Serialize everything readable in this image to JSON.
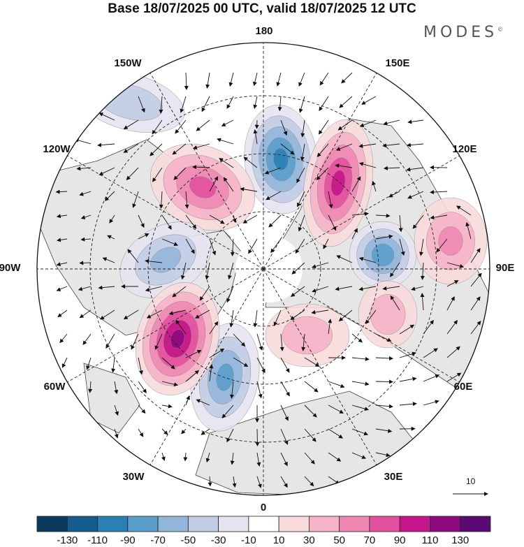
{
  "title": "Base 18/07/2025 00 UTC, valid 18/07/2025 12 UTC",
  "brand": {
    "name": "MODES",
    "mark": "©"
  },
  "map": {
    "projection": "north-polar-stereographic",
    "longitude_labels": [
      "180",
      "150E",
      "120E",
      "90E",
      "60E",
      "30E",
      "0",
      "30W",
      "60W",
      "90W",
      "120W",
      "150W"
    ],
    "colors": {
      "land_fill": "#e6e6e6",
      "coastline": "#444444",
      "graticule": "#222222",
      "vector": "#111111"
    },
    "anomaly_centers": [
      {
        "sign": "negative",
        "value": -90
      },
      {
        "sign": "positive",
        "value": 90
      },
      {
        "sign": "positive",
        "value": 70
      },
      {
        "sign": "negative",
        "value": -50
      },
      {
        "sign": "negative",
        "value": -70
      },
      {
        "sign": "positive",
        "value": 110
      },
      {
        "sign": "negative",
        "value": -80
      },
      {
        "sign": "positive",
        "value": 50
      },
      {
        "sign": "positive",
        "value": 40
      },
      {
        "sign": "negative",
        "value": -40
      },
      {
        "sign": "positive",
        "value": 40
      }
    ]
  },
  "reference_vector": {
    "label": "10"
  },
  "colorbar": {
    "tick_labels": [
      "-130",
      "-110",
      "-90",
      "-70",
      "-50",
      "-30",
      "-10",
      "10",
      "30",
      "50",
      "70",
      "90",
      "110",
      "130"
    ],
    "colors": [
      "#0b3a5c",
      "#135e8f",
      "#2a7fb5",
      "#5a9fcc",
      "#92b6d9",
      "#c1cce4",
      "#e4e3f0",
      "#ffffff",
      "#f8dadd",
      "#f4b3c6",
      "#ee88b3",
      "#e3509e",
      "#c4168a",
      "#8d0a7e",
      "#5a0a72"
    ]
  }
}
